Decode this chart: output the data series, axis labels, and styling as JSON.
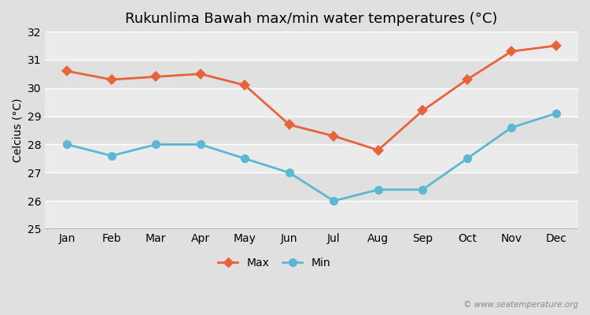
{
  "title": "Rukunlima Bawah max/min water temperatures (°C)",
  "ylabel": "Celcius (°C)",
  "months": [
    "Jan",
    "Feb",
    "Mar",
    "Apr",
    "May",
    "Jun",
    "Jul",
    "Aug",
    "Sep",
    "Oct",
    "Nov",
    "Dec"
  ],
  "max_temps": [
    30.6,
    30.3,
    30.4,
    30.5,
    30.1,
    28.7,
    28.3,
    27.8,
    29.2,
    30.3,
    31.3,
    31.5
  ],
  "min_temps": [
    28.0,
    27.6,
    28.0,
    28.0,
    27.5,
    27.0,
    26.0,
    26.4,
    26.4,
    27.5,
    28.6,
    29.1
  ],
  "max_color": "#e8623a",
  "min_color": "#5bb8d4",
  "bg_color": "#e0e0e0",
  "band_colors": [
    "#ebebeb",
    "#e0e0e0"
  ],
  "grid_color": "#ffffff",
  "bottom_line_color": "#aaaaaa",
  "ylim": [
    25,
    32
  ],
  "yticks": [
    25,
    26,
    27,
    28,
    29,
    30,
    31,
    32
  ],
  "legend_labels": [
    "Max",
    "Min"
  ],
  "watermark": "© www.seatemperature.org",
  "title_fontsize": 13,
  "label_fontsize": 10,
  "tick_fontsize": 10,
  "max_marker": "D",
  "min_marker": "o",
  "max_markersize": 7,
  "min_markersize": 8,
  "linewidth": 2
}
